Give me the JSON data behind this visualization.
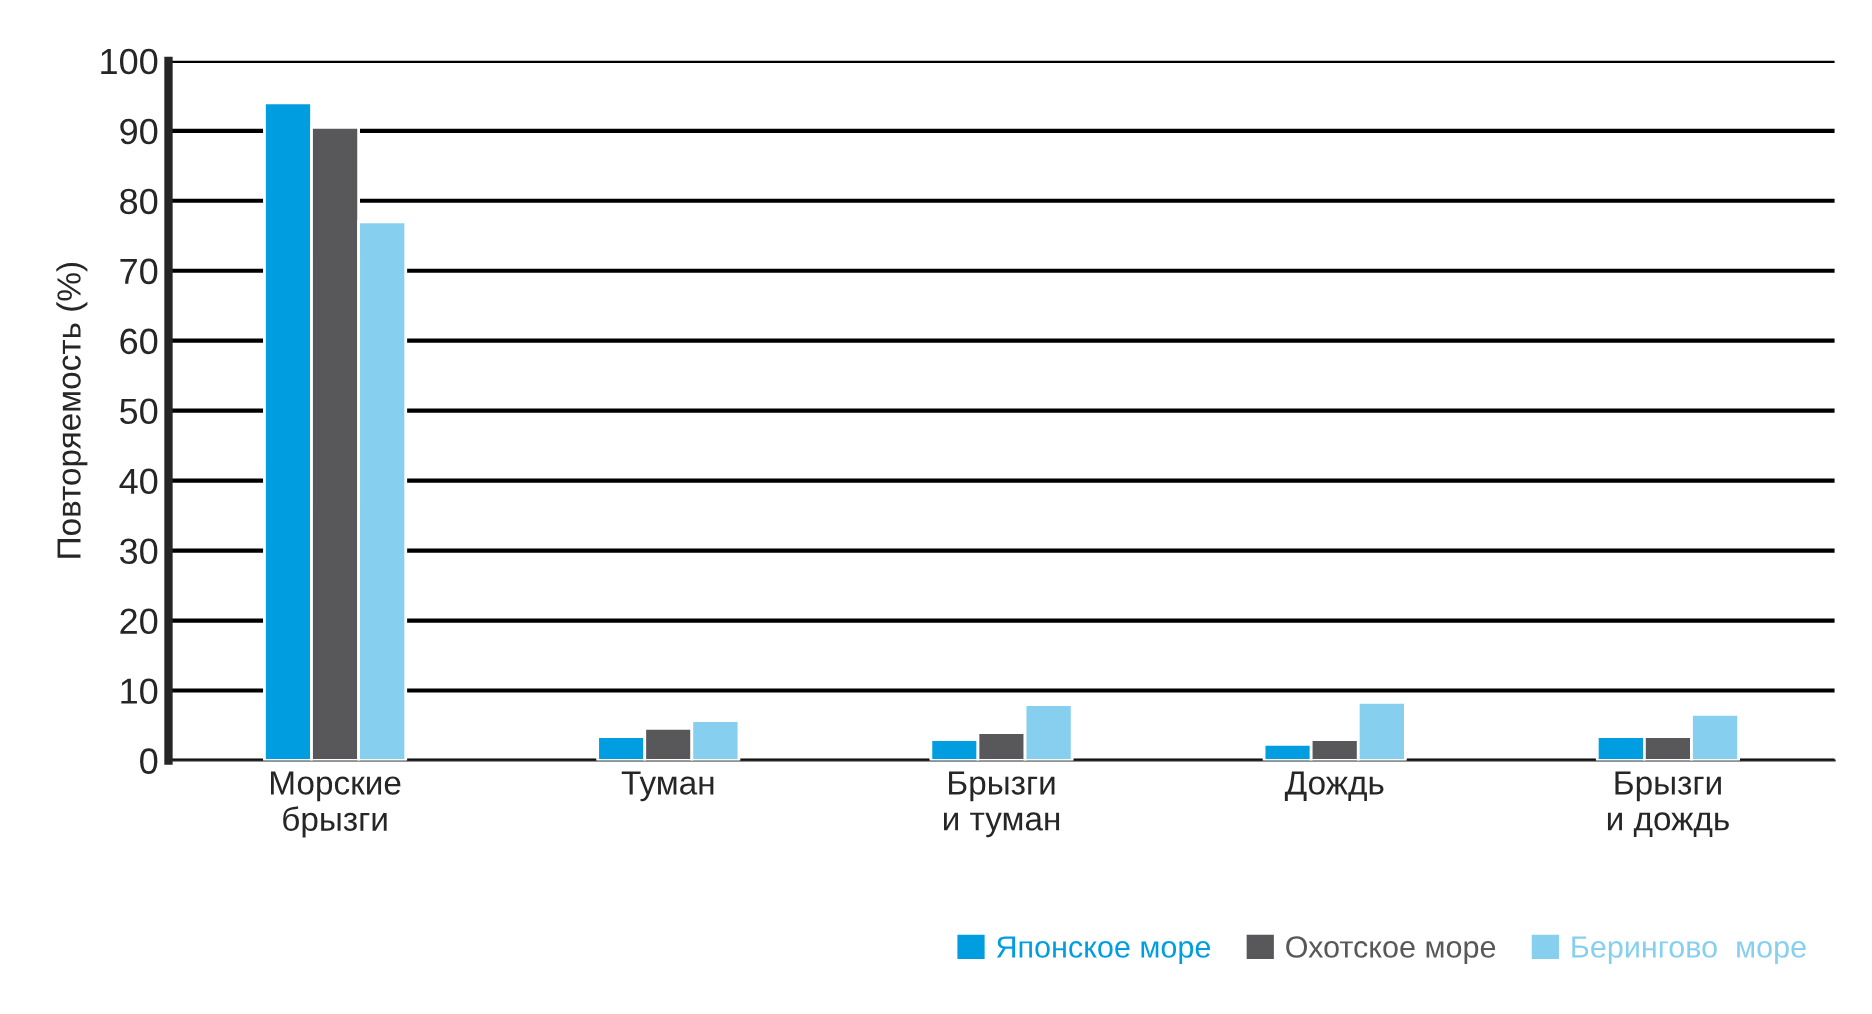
{
  "chart_data": {
    "type": "bar",
    "ylabel": "Повторяемость (%)",
    "categories": [
      "Морские\nбрызги",
      "Туман",
      "Брызги\nи туман",
      "Дождь",
      "Брызги\nи дождь"
    ],
    "series": [
      {
        "name": "Японское море",
        "color": "#009ee0",
        "values": [
          94,
          3.4,
          3,
          2.3,
          3.4
        ]
      },
      {
        "name": "Охотское море",
        "color": "#58585a",
        "values": [
          90.5,
          4.6,
          4,
          3,
          3.4
        ]
      },
      {
        "name": "Берингово  море",
        "color": "#87cfef",
        "values": [
          77,
          5.7,
          8,
          8.3,
          6.6
        ]
      }
    ],
    "ylim": [
      0,
      100
    ],
    "yticks": [
      0,
      10,
      20,
      30,
      40,
      50,
      60,
      70,
      80,
      90,
      100
    ],
    "grid": "y",
    "legend": "bottom right"
  }
}
